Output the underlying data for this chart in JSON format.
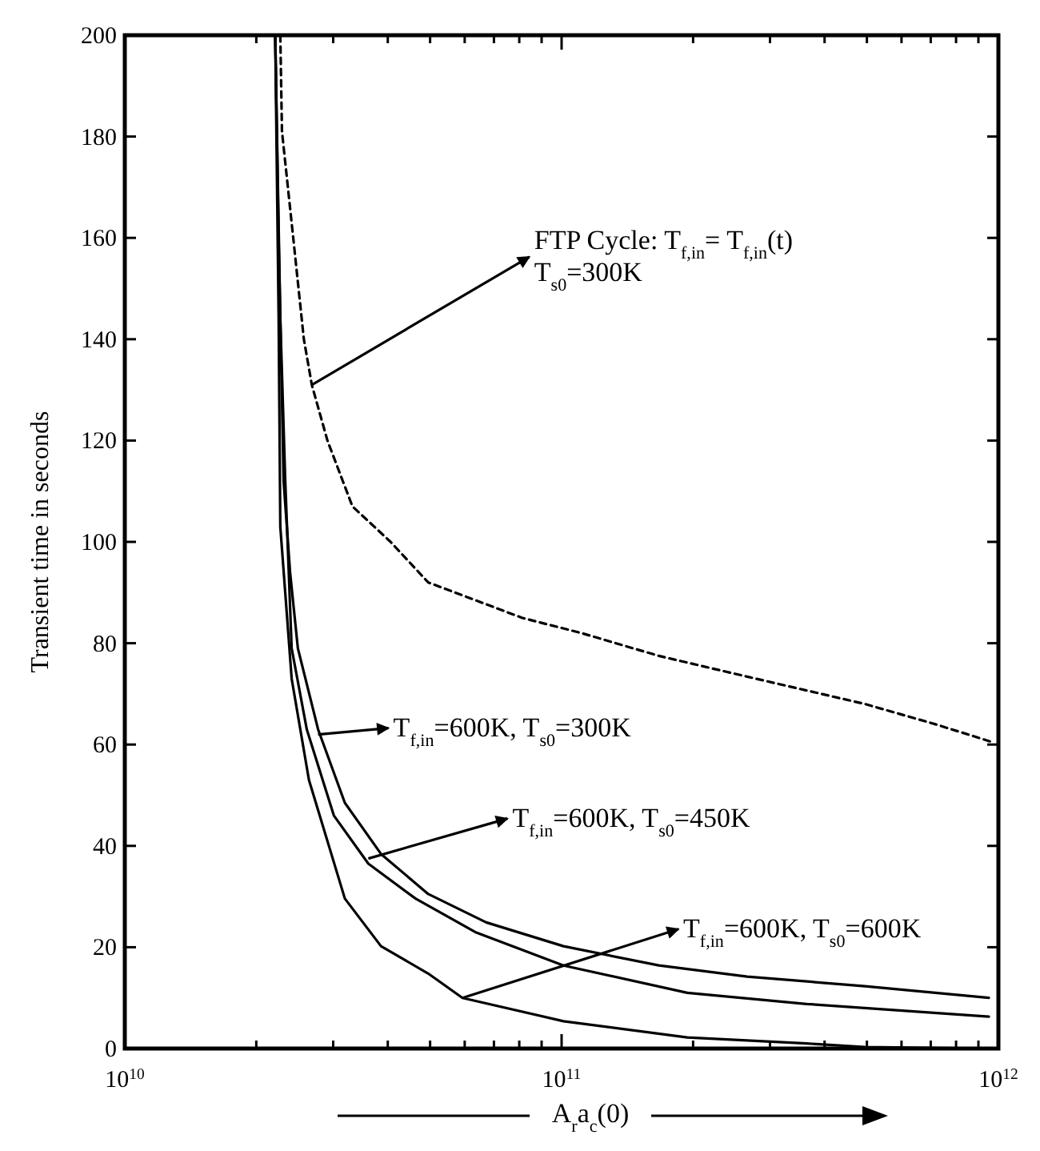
{
  "chart_data": {
    "type": "line",
    "xlabel": "A$_{r}$a$_{c}$(0)",
    "ylabel": "Transient time in seconds",
    "log": "x",
    "grid": false,
    "marker": "none",
    "xlim": [
      10000000000.0,
      1000000000000.0
    ],
    "xticks": [
      {
        "value": 10000000000.0,
        "label": "10$^{10}$"
      },
      {
        "value": 20000000000.0,
        "label": null
      },
      {
        "value": 30000000000.0,
        "label": null
      },
      {
        "value": 40000000000.0,
        "label": null
      },
      {
        "value": 50000000000.0,
        "label": null
      },
      {
        "value": 60000000000.0,
        "label": null
      },
      {
        "value": 70000000000.0,
        "label": null
      },
      {
        "value": 80000000000.0,
        "label": null
      },
      {
        "value": 90000000000.0,
        "label": null
      },
      {
        "value": 100000000000.0,
        "label": "10$^{11}$"
      },
      {
        "value": 200000000000.0,
        "label": null
      },
      {
        "value": 300000000000.0,
        "label": null
      },
      {
        "value": 400000000000.0,
        "label": null
      },
      {
        "value": 500000000000.0,
        "label": null
      },
      {
        "value": 600000000000.0,
        "label": null
      },
      {
        "value": 700000000000.0,
        "label": null
      },
      {
        "value": 800000000000.0,
        "label": null
      },
      {
        "value": 900000000000.0,
        "label": null
      },
      {
        "value": 1000000000000.0,
        "label": "10$^{12}$"
      }
    ],
    "ylim": [
      0,
      200
    ],
    "yticks": [
      0,
      20,
      40,
      60,
      80,
      100,
      120,
      140,
      160,
      180,
      200
    ],
    "series": [
      {
        "color": "#000000",
        "line_style": "dashed",
        "x": [
          22700000000.0,
          22900000000.0,
          24300000000.0,
          25700000000.0,
          26800000000.0,
          29100000000.0,
          33200000000.0,
          40600000000.0,
          49500000000.0,
          81300000000.0,
          111000000000.0,
          167000000000.0,
          266000000000.0,
          495000000000.0,
          718000000000.0,
          967000000000.0
        ],
        "values": [
          200,
          181,
          160,
          140,
          131,
          120,
          107,
          100,
          92,
          85,
          82,
          77.5,
          73.4,
          68,
          64,
          60.5
        ]
      },
      {
        "color": "#000000",
        "line_style": "solid",
        "x": [
          22100000000.0,
          22500000000.0,
          22700000000.0,
          23100000000.0,
          23900000000.0,
          24900000000.0,
          27700000000.0,
          31900000000.0,
          38600000000.0,
          49500000000.0,
          67200000000.0,
          101000000000.0,
          167000000000.0,
          266000000000.0,
          495000000000.0,
          951000000000.0
        ],
        "values": [
          200,
          160,
          144,
          112,
          94,
          79,
          63,
          48.5,
          38.4,
          30.5,
          24.9,
          20.2,
          16.4,
          14.2,
          12.3,
          10
        ]
      },
      {
        "color": "#000000",
        "line_style": "solid",
        "x": [
          22100000000.0,
          22700000000.0,
          23300000000.0,
          24100000000.0,
          26100000000.0,
          30100000000.0,
          36100000000.0,
          46300000000.0,
          63400000000.0,
          101000000000.0,
          194000000000.0,
          364000000000.0,
          951000000000.0
        ],
        "values": [
          200,
          144,
          112,
          79,
          63,
          46,
          36.5,
          29.6,
          23,
          16.4,
          11,
          8.8,
          6.3
        ]
      },
      {
        "color": "#000000",
        "line_style": "solid",
        "x": [
          22100000000.0,
          22500000000.0,
          22700000000.0,
          24100000000.0,
          26400000000.0,
          31900000000.0,
          38600000000.0,
          49500000000.0,
          59300000000.0,
          101000000000.0,
          194000000000.0,
          364000000000.0,
          495000000000.0,
          951000000000.0
        ],
        "values": [
          200,
          144,
          103,
          73,
          53,
          29.6,
          20.2,
          14.8,
          10,
          5.4,
          2.2,
          1,
          0.3,
          0
        ]
      }
    ],
    "annotations": [
      {
        "text": "FTP Cycle: T$_{f,in}$= T$_{f,in}$(t)",
        "x": 26800000000.0,
        "y": 131
      },
      "T$_{s0}$=300K",
      {
        "text": "T$_{f,in}$=600K, T$_{s0}$=300K",
        "x": 27700000000.0,
        "y": 62
      },
      {
        "text": "T$_{f,in}$=600K, T$_{s0}$=450K",
        "x": 36100000000.0,
        "y": 37.5
      },
      {
        "text": "T$_{f,in}$=600K, T$_{s0}$=600K",
        "x": 59300000000.0,
        "y": 10
      }
    ]
  }
}
